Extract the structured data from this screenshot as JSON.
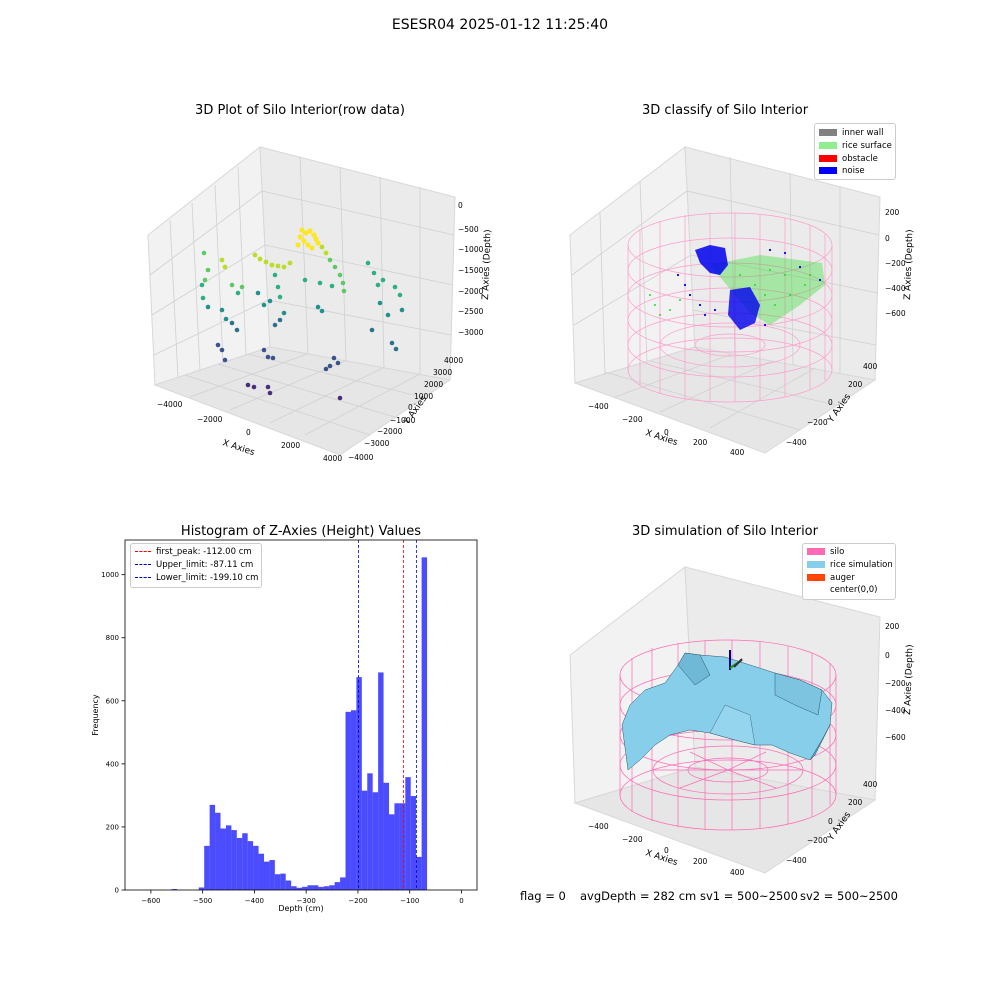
{
  "suptitle": "ESESR04 2025-01-12 11:25:40",
  "plot_raw": {
    "title": "3D Plot of Silo Interior(row data)",
    "xlabel": "X Axies",
    "ylabel": "Y Axies",
    "zlabel": "Z Axies (Depth)",
    "x_ticks": [
      "−4000",
      "−2000",
      "0",
      "2000",
      "4000"
    ],
    "y_ticks": [
      "−4000",
      "−3000",
      "−2000",
      "−1000",
      "0",
      "1000",
      "2000",
      "3000",
      "4000"
    ],
    "z_ticks": [
      "0",
      "−500",
      "−1000",
      "−1500",
      "−2000",
      "−2500",
      "−3000"
    ]
  },
  "plot_classify": {
    "title": "3D classify of Silo Interior",
    "xlabel": "X Axies",
    "ylabel": "Y Axies",
    "zlabel": "Z Axies (Depth)",
    "x_ticks": [
      "−400",
      "−200",
      "0",
      "200",
      "400"
    ],
    "y_ticks": [
      "−400",
      "−200",
      "0",
      "200",
      "400"
    ],
    "z_ticks": [
      "200",
      "0",
      "−200",
      "−400",
      "−600"
    ],
    "legend": [
      {
        "label": "inner wall",
        "color": "#808080"
      },
      {
        "label": "rice surface",
        "color": "#90ee90"
      },
      {
        "label": "obstacle",
        "color": "#ff0000"
      },
      {
        "label": "noise",
        "color": "#0000ff"
      }
    ]
  },
  "plot_sim": {
    "title": "3D simulation of Silo Interior",
    "xlabel": "X Axies",
    "ylabel": "Y Axies",
    "zlabel": "Z Axies (Depth)",
    "x_ticks": [
      "−400",
      "−200",
      "0",
      "200",
      "400"
    ],
    "y_ticks": [
      "−400",
      "−200",
      "0",
      "200",
      "400"
    ],
    "z_ticks": [
      "200",
      "0",
      "−200",
      "−400",
      "−600"
    ],
    "legend": [
      {
        "label": "silo",
        "color": "#ff69b4"
      },
      {
        "label": "rice simulation",
        "color": "#87ceeb"
      },
      {
        "label": "auger",
        "color": "#ff4500"
      },
      {
        "label": "center(0,0)",
        "color": ""
      }
    ]
  },
  "status": {
    "flag": "flag = 0",
    "avg_depth": "avgDepth = 282 cm",
    "sv1": "sv1 = 500~2500",
    "sv2": "sv2 = 500~2500"
  },
  "chart_data": [
    {
      "type": "bar",
      "title": "Histogram of Z-Axies (Height) Values",
      "xlabel": "Depth (cm)",
      "ylabel": "Frequency",
      "xlim": [
        -650,
        30
      ],
      "ylim": [
        0,
        1110
      ],
      "x_ticks": [
        -600,
        -500,
        -400,
        -300,
        -200,
        -100,
        0
      ],
      "y_ticks": [
        0,
        200,
        400,
        600,
        800,
        1000
      ],
      "bar_color": "#0000ff",
      "bin_start": -560,
      "bin_width": 10.5,
      "values": [
        3,
        0,
        0,
        0,
        0,
        8,
        140,
        270,
        245,
        195,
        205,
        190,
        165,
        180,
        155,
        140,
        115,
        90,
        95,
        50,
        52,
        30,
        12,
        7,
        10,
        15,
        15,
        10,
        12,
        15,
        25,
        40,
        565,
        570,
        675,
        315,
        370,
        310,
        690,
        340,
        240,
        275,
        275,
        358,
        298,
        105,
        1055
      ],
      "vlines": [
        {
          "name": "first_peak",
          "label": "first_peak: -112.00 cm",
          "x": -112.0,
          "color": "#ff0000"
        },
        {
          "name": "upper-limit",
          "label": "Upper_limit: -87.11 cm",
          "x": -87.11,
          "color": "#0000cc"
        },
        {
          "name": "lower-limit",
          "label": "Lower_limit: -199.10 cm",
          "x": -199.1,
          "color": "#0000cc"
        }
      ],
      "legend": "top-left"
    }
  ]
}
